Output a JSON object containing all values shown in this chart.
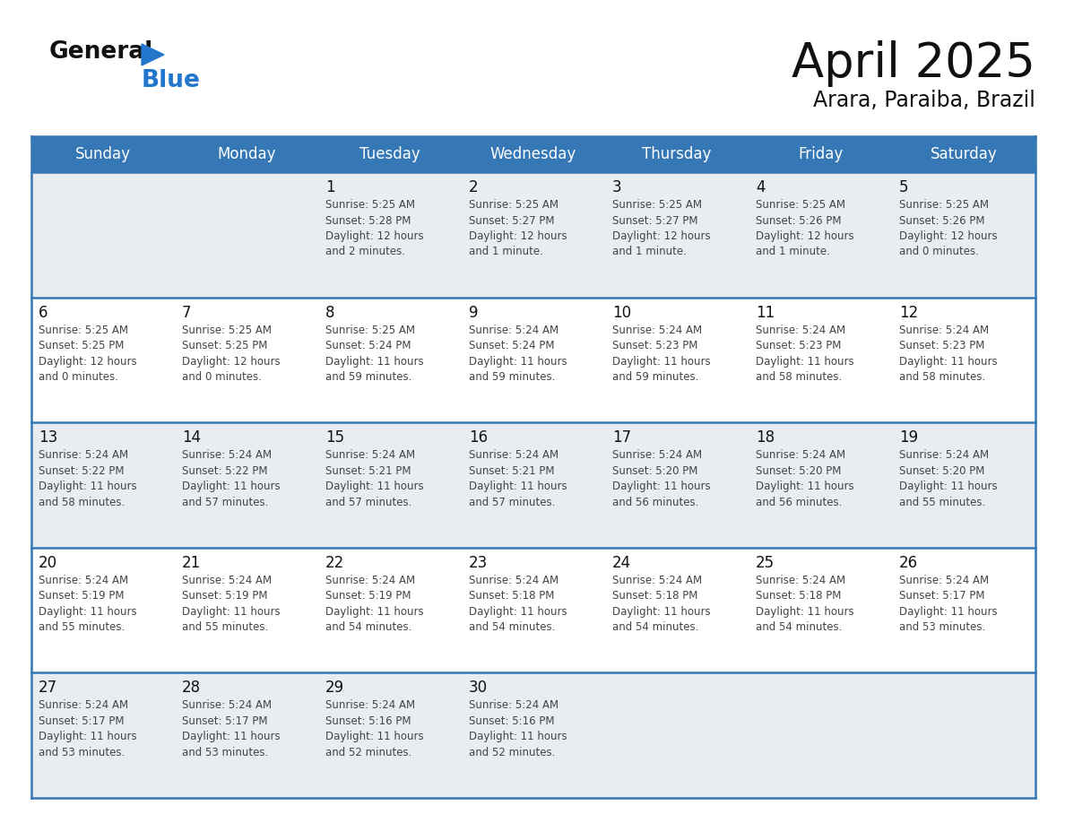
{
  "title": "April 2025",
  "subtitle": "Arara, Paraiba, Brazil",
  "header_bg_color": "#3578b5",
  "header_text_color": "#ffffff",
  "day_names": [
    "Sunday",
    "Monday",
    "Tuesday",
    "Wednesday",
    "Thursday",
    "Friday",
    "Saturday"
  ],
  "cell_bg_light": "#e8edf2",
  "cell_bg_white": "#ffffff",
  "cell_border_color": "#3578b5",
  "cell_divider_color": "#c0c0c0",
  "day_number_color": "#111111",
  "info_text_color": "#444444",
  "title_color": "#111111",
  "subtitle_color": "#111111",
  "logo_general_color": "#111111",
  "logo_blue_color": "#2277cc",
  "weeks": [
    [
      {
        "day": null,
        "info": ""
      },
      {
        "day": null,
        "info": ""
      },
      {
        "day": 1,
        "info": "Sunrise: 5:25 AM\nSunset: 5:28 PM\nDaylight: 12 hours\nand 2 minutes."
      },
      {
        "day": 2,
        "info": "Sunrise: 5:25 AM\nSunset: 5:27 PM\nDaylight: 12 hours\nand 1 minute."
      },
      {
        "day": 3,
        "info": "Sunrise: 5:25 AM\nSunset: 5:27 PM\nDaylight: 12 hours\nand 1 minute."
      },
      {
        "day": 4,
        "info": "Sunrise: 5:25 AM\nSunset: 5:26 PM\nDaylight: 12 hours\nand 1 minute."
      },
      {
        "day": 5,
        "info": "Sunrise: 5:25 AM\nSunset: 5:26 PM\nDaylight: 12 hours\nand 0 minutes."
      }
    ],
    [
      {
        "day": 6,
        "info": "Sunrise: 5:25 AM\nSunset: 5:25 PM\nDaylight: 12 hours\nand 0 minutes."
      },
      {
        "day": 7,
        "info": "Sunrise: 5:25 AM\nSunset: 5:25 PM\nDaylight: 12 hours\nand 0 minutes."
      },
      {
        "day": 8,
        "info": "Sunrise: 5:25 AM\nSunset: 5:24 PM\nDaylight: 11 hours\nand 59 minutes."
      },
      {
        "day": 9,
        "info": "Sunrise: 5:24 AM\nSunset: 5:24 PM\nDaylight: 11 hours\nand 59 minutes."
      },
      {
        "day": 10,
        "info": "Sunrise: 5:24 AM\nSunset: 5:23 PM\nDaylight: 11 hours\nand 59 minutes."
      },
      {
        "day": 11,
        "info": "Sunrise: 5:24 AM\nSunset: 5:23 PM\nDaylight: 11 hours\nand 58 minutes."
      },
      {
        "day": 12,
        "info": "Sunrise: 5:24 AM\nSunset: 5:23 PM\nDaylight: 11 hours\nand 58 minutes."
      }
    ],
    [
      {
        "day": 13,
        "info": "Sunrise: 5:24 AM\nSunset: 5:22 PM\nDaylight: 11 hours\nand 58 minutes."
      },
      {
        "day": 14,
        "info": "Sunrise: 5:24 AM\nSunset: 5:22 PM\nDaylight: 11 hours\nand 57 minutes."
      },
      {
        "day": 15,
        "info": "Sunrise: 5:24 AM\nSunset: 5:21 PM\nDaylight: 11 hours\nand 57 minutes."
      },
      {
        "day": 16,
        "info": "Sunrise: 5:24 AM\nSunset: 5:21 PM\nDaylight: 11 hours\nand 57 minutes."
      },
      {
        "day": 17,
        "info": "Sunrise: 5:24 AM\nSunset: 5:20 PM\nDaylight: 11 hours\nand 56 minutes."
      },
      {
        "day": 18,
        "info": "Sunrise: 5:24 AM\nSunset: 5:20 PM\nDaylight: 11 hours\nand 56 minutes."
      },
      {
        "day": 19,
        "info": "Sunrise: 5:24 AM\nSunset: 5:20 PM\nDaylight: 11 hours\nand 55 minutes."
      }
    ],
    [
      {
        "day": 20,
        "info": "Sunrise: 5:24 AM\nSunset: 5:19 PM\nDaylight: 11 hours\nand 55 minutes."
      },
      {
        "day": 21,
        "info": "Sunrise: 5:24 AM\nSunset: 5:19 PM\nDaylight: 11 hours\nand 55 minutes."
      },
      {
        "day": 22,
        "info": "Sunrise: 5:24 AM\nSunset: 5:19 PM\nDaylight: 11 hours\nand 54 minutes."
      },
      {
        "day": 23,
        "info": "Sunrise: 5:24 AM\nSunset: 5:18 PM\nDaylight: 11 hours\nand 54 minutes."
      },
      {
        "day": 24,
        "info": "Sunrise: 5:24 AM\nSunset: 5:18 PM\nDaylight: 11 hours\nand 54 minutes."
      },
      {
        "day": 25,
        "info": "Sunrise: 5:24 AM\nSunset: 5:18 PM\nDaylight: 11 hours\nand 54 minutes."
      },
      {
        "day": 26,
        "info": "Sunrise: 5:24 AM\nSunset: 5:17 PM\nDaylight: 11 hours\nand 53 minutes."
      }
    ],
    [
      {
        "day": 27,
        "info": "Sunrise: 5:24 AM\nSunset: 5:17 PM\nDaylight: 11 hours\nand 53 minutes."
      },
      {
        "day": 28,
        "info": "Sunrise: 5:24 AM\nSunset: 5:17 PM\nDaylight: 11 hours\nand 53 minutes."
      },
      {
        "day": 29,
        "info": "Sunrise: 5:24 AM\nSunset: 5:16 PM\nDaylight: 11 hours\nand 52 minutes."
      },
      {
        "day": 30,
        "info": "Sunrise: 5:24 AM\nSunset: 5:16 PM\nDaylight: 11 hours\nand 52 minutes."
      },
      {
        "day": null,
        "info": ""
      },
      {
        "day": null,
        "info": ""
      },
      {
        "day": null,
        "info": ""
      }
    ]
  ]
}
